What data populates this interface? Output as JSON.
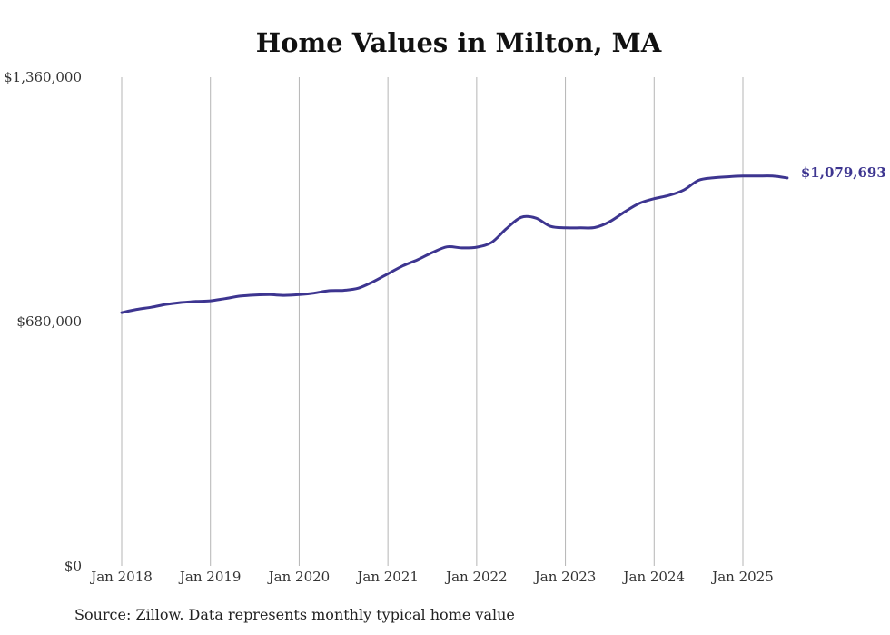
{
  "chart_data": {
    "type": "line",
    "title": "Home Values in Milton, MA",
    "xlabel": "",
    "ylabel": "",
    "ylim": [
      0,
      1360000
    ],
    "y_ticks": [
      0,
      680000,
      1360000
    ],
    "y_tick_labels": [
      "$0",
      "$680,000",
      "$1,360,000"
    ],
    "x_ticks": [
      "2018-01",
      "2019-01",
      "2020-01",
      "2021-01",
      "2022-01",
      "2023-01",
      "2024-01",
      "2025-01"
    ],
    "x_tick_labels": [
      "Jan 2018",
      "Jan 2019",
      "Jan 2020",
      "Jan 2021",
      "Jan 2022",
      "Jan 2023",
      "Jan 2024",
      "Jan 2025"
    ],
    "xlim": [
      "2018-01",
      "2025-08"
    ],
    "grid": "vertical",
    "series": [
      {
        "color": "#3d3590",
        "x": [
          "2018-01",
          "2018-03",
          "2018-05",
          "2018-07",
          "2018-09",
          "2018-11",
          "2019-01",
          "2019-03",
          "2019-05",
          "2019-07",
          "2019-09",
          "2019-11",
          "2020-01",
          "2020-03",
          "2020-05",
          "2020-07",
          "2020-09",
          "2020-11",
          "2021-01",
          "2021-03",
          "2021-05",
          "2021-07",
          "2021-09",
          "2021-11",
          "2022-01",
          "2022-03",
          "2022-05",
          "2022-07",
          "2022-09",
          "2022-11",
          "2023-01",
          "2023-03",
          "2023-05",
          "2023-07",
          "2023-09",
          "2023-11",
          "2024-01",
          "2024-03",
          "2024-05",
          "2024-07",
          "2024-09",
          "2024-11",
          "2025-01",
          "2025-03",
          "2025-05",
          "2025-07"
        ],
        "values": [
          705000,
          714000,
          720000,
          728000,
          733000,
          736000,
          738000,
          744000,
          751000,
          754000,
          755000,
          753000,
          755000,
          759000,
          766000,
          767000,
          773000,
          791000,
          813000,
          835000,
          852000,
          872000,
          888000,
          885000,
          887000,
          900000,
          938000,
          970000,
          968000,
          945000,
          941000,
          941000,
          942000,
          958000,
          985000,
          1009000,
          1022000,
          1031000,
          1046000,
          1073000,
          1080000,
          1083000,
          1085000,
          1085000,
          1085000,
          1079693
        ]
      }
    ],
    "end_label": "$1,079,693"
  },
  "footer": {
    "source": "Source: Zillow. Data represents monthly typical home value"
  }
}
